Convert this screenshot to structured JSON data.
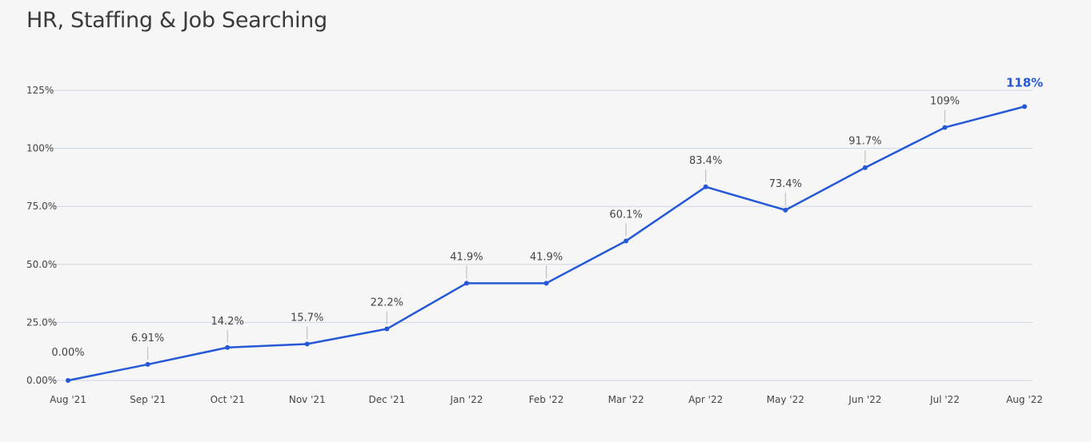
{
  "page_title": "HR, Staffing & Job Searching",
  "colors": {
    "line": "#2458d6",
    "grid": "#cdd6e2",
    "leader": "#b8b8b8",
    "last_label": "#2458d6"
  },
  "chart_data": {
    "type": "line",
    "title": "HR, Staffing & Job Searching",
    "xlabel": "",
    "ylabel": "",
    "categories": [
      "Aug '21",
      "Sep '21",
      "Oct '21",
      "Nov '21",
      "Dec '21",
      "Jan '22",
      "Feb '22",
      "Mar '22",
      "Apr '22",
      "May '22",
      "Jun '22",
      "Jul '22",
      "Aug '22"
    ],
    "series": [
      {
        "values": [
          0.0,
          6.91,
          14.2,
          15.7,
          22.2,
          41.9,
          41.9,
          60.1,
          83.4,
          73.4,
          91.7,
          109,
          118
        ]
      }
    ],
    "data_labels": [
      "0.00%",
      "6.91%",
      "14.2%",
      "15.7%",
      "22.2%",
      "41.9%",
      "41.9%",
      "60.1%",
      "83.4%",
      "73.4%",
      "91.7%",
      "109%",
      "118%"
    ],
    "ylim": [
      0,
      125
    ],
    "yticks": [
      0,
      25,
      50,
      75,
      100,
      125
    ],
    "ytick_labels": [
      "0.00%",
      "25.0%",
      "50.0%",
      "75.0%",
      "100%",
      "125%"
    ],
    "grid": true,
    "legend": "none"
  }
}
